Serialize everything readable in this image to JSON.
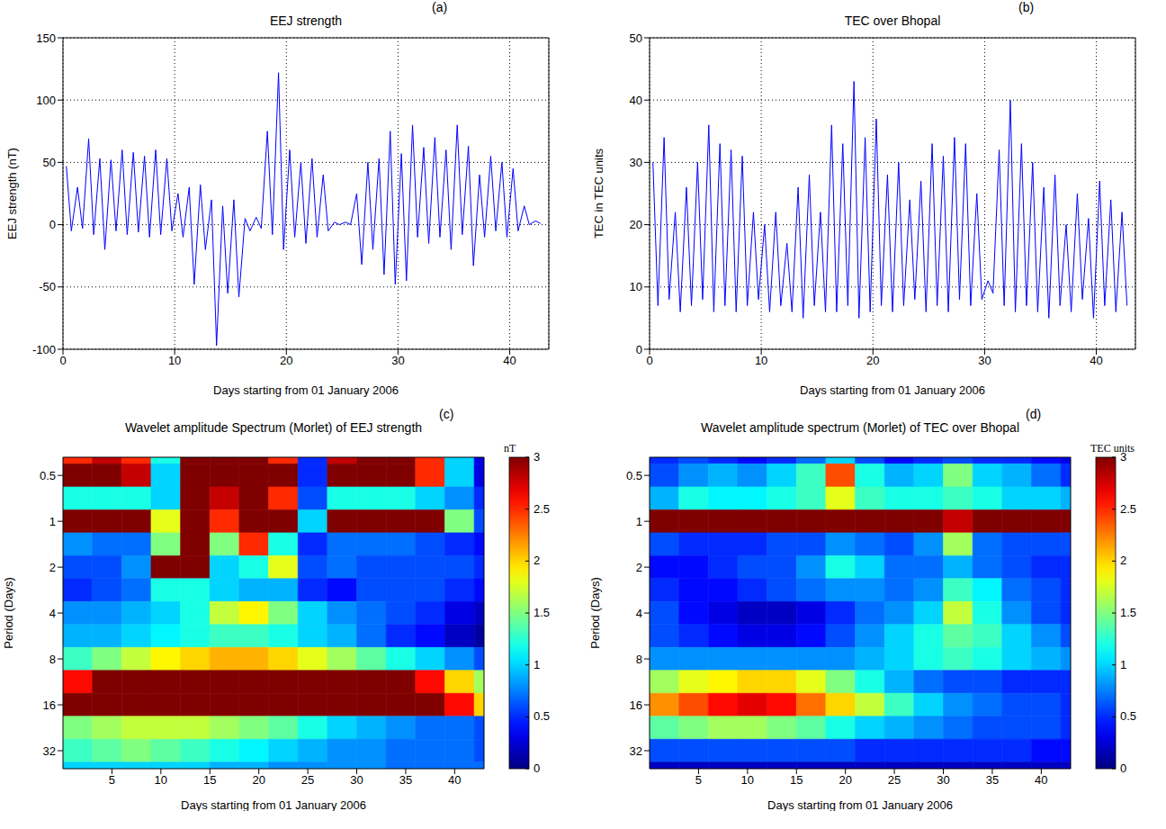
{
  "chart_data": [
    {
      "type": "line",
      "panel": "(a)",
      "title": "EEJ strength",
      "x_label": "Days starting from 01 January 2006",
      "y_label": "EEJ strength (nT)",
      "x": [
        0.3,
        0.75,
        1.3,
        1.75,
        2.3,
        2.75,
        3.3,
        3.75,
        4.3,
        4.75,
        5.3,
        5.75,
        6.3,
        6.75,
        7.3,
        7.75,
        8.3,
        8.75,
        9.3,
        9.75,
        10.3,
        10.75,
        11.3,
        11.75,
        12.3,
        12.75,
        13.3,
        13.75,
        14.3,
        14.75,
        15.3,
        15.75,
        16.3,
        16.75,
        17.3,
        17.75,
        18.3,
        18.75,
        19.3,
        19.75,
        20.3,
        20.75,
        21.3,
        21.75,
        22.3,
        22.75,
        23.3,
        23.75,
        24.3,
        24.75,
        25.3,
        25.75,
        26.3,
        26.75,
        27.3,
        27.75,
        28.3,
        28.75,
        29.3,
        29.75,
        30.3,
        30.75,
        31.3,
        31.75,
        32.3,
        32.75,
        33.3,
        33.75,
        34.3,
        34.75,
        35.3,
        35.75,
        36.3,
        36.75,
        37.3,
        37.75,
        38.3,
        38.75,
        39.3,
        39.75,
        40.3,
        40.75,
        41.3,
        41.75,
        42.3,
        42.75
      ],
      "values": [
        47,
        -5,
        30,
        -3,
        69,
        -8,
        53,
        -20,
        52,
        -5,
        60,
        -8,
        58,
        -6,
        55,
        -10,
        60,
        -8,
        53,
        -5,
        25,
        -10,
        30,
        -48,
        32,
        -20,
        20,
        -97,
        15,
        -55,
        20,
        -58,
        5,
        -5,
        6,
        -3,
        75,
        -8,
        122,
        -20,
        60,
        -10,
        50,
        -15,
        53,
        -10,
        40,
        -5,
        2,
        0,
        2,
        0,
        25,
        -32,
        50,
        -20,
        53,
        -40,
        75,
        -48,
        57,
        -45,
        80,
        -10,
        62,
        -15,
        70,
        -10,
        60,
        -20,
        80,
        -8,
        63,
        -33,
        40,
        -10,
        55,
        -5,
        50,
        -10,
        45,
        -5,
        15,
        0,
        3,
        1
      ],
      "color": "#0000ff",
      "xlim": [
        0,
        43.5
      ],
      "xticks": [
        0,
        10,
        20,
        30,
        40
      ],
      "ylim": [
        -100,
        150
      ],
      "yticks": [
        -100,
        -50,
        0,
        50,
        100,
        150
      ],
      "grid": true
    },
    {
      "type": "line",
      "panel": "(b)",
      "title": "TEC over Bhopal",
      "x_label": "Days starting from 01 January 2006",
      "y_label": "TEC in TEC units",
      "x": [
        0.3,
        0.75,
        1.3,
        1.75,
        2.3,
        2.75,
        3.3,
        3.75,
        4.3,
        4.75,
        5.3,
        5.75,
        6.3,
        6.75,
        7.3,
        7.75,
        8.3,
        8.75,
        9.3,
        9.75,
        10.3,
        10.75,
        11.3,
        11.75,
        12.3,
        12.75,
        13.3,
        13.75,
        14.3,
        14.75,
        15.3,
        15.75,
        16.3,
        16.75,
        17.3,
        17.75,
        18.3,
        18.75,
        19.3,
        19.75,
        20.3,
        20.75,
        21.3,
        21.75,
        22.3,
        22.75,
        23.3,
        23.75,
        24.3,
        24.75,
        25.3,
        25.75,
        26.3,
        26.75,
        27.3,
        27.75,
        28.3,
        28.75,
        29.3,
        29.75,
        30.3,
        30.75,
        31.3,
        31.75,
        32.3,
        32.75,
        33.3,
        33.75,
        34.3,
        34.75,
        35.3,
        35.75,
        36.3,
        36.75,
        37.3,
        37.75,
        38.3,
        38.75,
        39.3,
        39.75,
        40.3,
        40.75,
        41.3,
        41.75,
        42.3,
        42.75
      ],
      "values": [
        30,
        7,
        34,
        8,
        22,
        6,
        26,
        7,
        30,
        8,
        36,
        6,
        33,
        7,
        32,
        6,
        31,
        7,
        22,
        8,
        20,
        6,
        22,
        7,
        17,
        6,
        26,
        5,
        28,
        7,
        22,
        6,
        36,
        6,
        33,
        7,
        43,
        5,
        34,
        6,
        37,
        7,
        28,
        6,
        30,
        7,
        24,
        8,
        27,
        6,
        33,
        7,
        31,
        6,
        34,
        8,
        33,
        7,
        25,
        8,
        11,
        9,
        32,
        7,
        40,
        6,
        33,
        7,
        30,
        6,
        26,
        5,
        28,
        7,
        20,
        6,
        25,
        8,
        21,
        5,
        27,
        7,
        24,
        6,
        22,
        7
      ],
      "color": "#0000ff",
      "xlim": [
        0,
        43.5
      ],
      "xticks": [
        0,
        10,
        20,
        30,
        40
      ],
      "ylim": [
        0,
        50
      ],
      "yticks": [
        0,
        10,
        20,
        30,
        40,
        50
      ],
      "grid": true
    },
    {
      "type": "heatmap",
      "panel": "(c)",
      "title": "Wavelet amplitude Spectrum (Morlet) of EEJ strength",
      "x_label": "Days starting from 01 January 2006",
      "y_label": "Period (Days)",
      "x_bins": [
        0,
        3,
        6,
        9,
        12,
        15,
        18,
        21,
        24,
        27,
        30,
        33,
        36,
        39,
        42,
        43
      ],
      "period_bins": [
        0.297,
        0.42,
        0.595,
        0.841,
        1.189,
        1.682,
        2.378,
        3.364,
        4.757,
        6.727,
        9.514,
        13.45,
        19.03,
        26.91,
        38.05,
        53.82
      ],
      "cells": [
        [
          2.5,
          2.8,
          2.5,
          1.2,
          3,
          3,
          3,
          2.5,
          0.5,
          2.8,
          3,
          3,
          2.5,
          1,
          0.3
        ],
        [
          3,
          3,
          2.8,
          1,
          3,
          3,
          3,
          3,
          0.5,
          3,
          3,
          3,
          2.5,
          1,
          0.3
        ],
        [
          1.2,
          1.2,
          1.2,
          1,
          3,
          2.8,
          3,
          2.5,
          0.6,
          1.2,
          1.2,
          1.2,
          1,
          0.8,
          0.5
        ],
        [
          3,
          3,
          3,
          1.8,
          3,
          2.5,
          3,
          3,
          1,
          3,
          3,
          3,
          3,
          1.5,
          0.6
        ],
        [
          0.8,
          0.7,
          0.7,
          1.5,
          3,
          1.5,
          2.5,
          1.2,
          0.5,
          0.7,
          0.7,
          0.7,
          0.6,
          0.5,
          0.4
        ],
        [
          0.6,
          0.6,
          0.8,
          3,
          3,
          1,
          1.2,
          1.8,
          0.6,
          0.7,
          0.6,
          0.6,
          0.6,
          0.6,
          0.5
        ],
        [
          0.5,
          0.6,
          0.7,
          1.2,
          1.2,
          1,
          0.9,
          0.9,
          0.5,
          0.4,
          0.6,
          0.6,
          0.6,
          0.5,
          0.4
        ],
        [
          0.8,
          0.8,
          0.9,
          1,
          1.2,
          1.7,
          1.9,
          1.5,
          1,
          0.8,
          0.7,
          0.6,
          0.5,
          0.3,
          0.2
        ],
        [
          0.9,
          0.9,
          1,
          1.1,
          1.2,
          1.3,
          1.3,
          1.2,
          1,
          0.9,
          0.7,
          0.5,
          0.4,
          0.2,
          0.1
        ],
        [
          1.3,
          1.5,
          1.7,
          1.9,
          2,
          2.1,
          2.1,
          2,
          1.8,
          1.6,
          1.4,
          1.2,
          1,
          0.8,
          0.6
        ],
        [
          2.6,
          3,
          3,
          3,
          3,
          3,
          3,
          3,
          3,
          3,
          3,
          3,
          2.6,
          2,
          1.6
        ],
        [
          3,
          3,
          3,
          3,
          3,
          3,
          3,
          3,
          3,
          3,
          3,
          3,
          3,
          2.6,
          2
        ],
        [
          1.5,
          1.6,
          1.7,
          1.7,
          1.7,
          1.6,
          1.5,
          1.4,
          1.2,
          1,
          0.9,
          0.8,
          0.7,
          0.7,
          0.6
        ],
        [
          1.3,
          1.4,
          1.5,
          1.4,
          1.3,
          1.2,
          1.1,
          1,
          0.9,
          0.8,
          0.8,
          0.7,
          0.7,
          0.7,
          0.6
        ],
        [
          1,
          1,
          1,
          1,
          1,
          0.9,
          0.9,
          0.8,
          0.8,
          0.8,
          0.8,
          0.7,
          0.7,
          0.7,
          0.7
        ]
      ],
      "xlim": [
        0,
        43
      ],
      "xticks": [
        5,
        10,
        15,
        20,
        25,
        30,
        35,
        40
      ],
      "ylim": [
        0.38,
        42
      ],
      "yticks": [
        0.5,
        1,
        2,
        4,
        8,
        16,
        32
      ],
      "log": "y",
      "colorbar": {
        "label": "nT",
        "range": [
          0,
          3
        ],
        "ticks": [
          0,
          0.5,
          1,
          1.5,
          2,
          2.5,
          3
        ]
      }
    },
    {
      "type": "heatmap",
      "panel": "(d)",
      "title": "Wavelet amplitude spectrum (Morlet) of TEC over Bhopal",
      "x_label": "Days starting from 01 January 2006",
      "y_label": "Period (Days)",
      "x_bins": [
        0,
        3,
        6,
        9,
        12,
        15,
        18,
        21,
        24,
        27,
        30,
        33,
        36,
        39,
        42,
        43
      ],
      "period_bins": [
        0.297,
        0.42,
        0.595,
        0.841,
        1.189,
        1.682,
        2.378,
        3.364,
        4.757,
        6.727,
        9.514,
        13.45,
        19.03,
        26.91,
        38.05,
        53.82
      ],
      "cells": [
        [
          0.5,
          0.6,
          0.5,
          0.4,
          0.5,
          0.7,
          1,
          0.6,
          0.4,
          0.5,
          0.6,
          0.5,
          0.5,
          0.4,
          0.3
        ],
        [
          0.6,
          0.8,
          0.9,
          0.8,
          1,
          1.3,
          2.4,
          1.2,
          0.9,
          1,
          1.5,
          1,
          0.9,
          0.7,
          0.5
        ],
        [
          0.9,
          1.2,
          1.1,
          1.1,
          1.2,
          1.3,
          1.8,
          1.3,
          1.2,
          1.2,
          1.3,
          1.2,
          1,
          1,
          0.9
        ],
        [
          3,
          3,
          3,
          3,
          3,
          3,
          3,
          3,
          3,
          3,
          2.8,
          3,
          3,
          3,
          3
        ],
        [
          0.6,
          0.5,
          0.5,
          0.5,
          0.6,
          0.6,
          0.8,
          0.7,
          0.6,
          0.8,
          1.6,
          0.7,
          0.6,
          0.6,
          0.6
        ],
        [
          0.4,
          0.4,
          0.5,
          0.6,
          0.6,
          0.8,
          1.2,
          1,
          0.7,
          0.7,
          0.9,
          0.7,
          0.6,
          0.5,
          0.5
        ],
        [
          0.5,
          0.4,
          0.4,
          0.5,
          0.6,
          0.7,
          0.8,
          0.8,
          0.7,
          0.8,
          1.3,
          1.1,
          0.7,
          0.6,
          0.5
        ],
        [
          0.6,
          0.4,
          0.3,
          0.2,
          0.2,
          0.3,
          0.5,
          0.7,
          0.8,
          1,
          1.7,
          1.2,
          0.8,
          0.6,
          0.5
        ],
        [
          0.6,
          0.5,
          0.4,
          0.3,
          0.3,
          0.4,
          0.6,
          0.8,
          1,
          1.2,
          1.4,
          1.3,
          1,
          0.8,
          0.6
        ],
        [
          0.8,
          0.8,
          0.8,
          0.8,
          0.8,
          0.8,
          0.8,
          0.9,
          1,
          1.2,
          1.3,
          1.2,
          1,
          0.9,
          0.8
        ],
        [
          1.6,
          1.8,
          1.9,
          2,
          2,
          1.8,
          1.5,
          1.2,
          0.9,
          0.7,
          0.6,
          0.6,
          0.5,
          0.5,
          0.5
        ],
        [
          2.2,
          2.4,
          2.6,
          2.7,
          2.6,
          2.3,
          2,
          1.7,
          1.3,
          1,
          0.8,
          0.7,
          0.6,
          0.6,
          0.5
        ],
        [
          1.4,
          1.5,
          1.6,
          1.6,
          1.5,
          1.4,
          1.2,
          1,
          0.9,
          0.8,
          0.7,
          0.6,
          0.6,
          0.6,
          0.5
        ],
        [
          0.6,
          0.6,
          0.6,
          0.6,
          0.6,
          0.6,
          0.6,
          0.5,
          0.5,
          0.5,
          0.5,
          0.5,
          0.5,
          0.4,
          0.4
        ],
        [
          0.2,
          0.2,
          0.2,
          0.2,
          0.2,
          0.2,
          0.2,
          0.2,
          0.2,
          0.2,
          0.2,
          0.2,
          0.2,
          0.2,
          0.2
        ]
      ],
      "xlim": [
        0,
        43
      ],
      "xticks": [
        5,
        10,
        15,
        20,
        25,
        30,
        35,
        40
      ],
      "ylim": [
        0.38,
        42
      ],
      "yticks": [
        0.5,
        1,
        2,
        4,
        8,
        16,
        32
      ],
      "log": "y",
      "colorbar": {
        "label": "TEC units",
        "range": [
          0,
          3
        ],
        "ticks": [
          0,
          0.5,
          1,
          1.5,
          2,
          2.5,
          3
        ]
      }
    }
  ]
}
